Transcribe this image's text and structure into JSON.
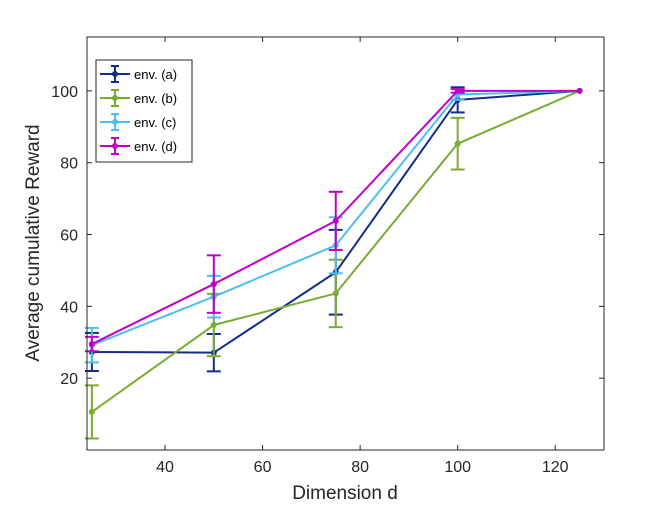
{
  "chart_data": {
    "type": "line",
    "title": "",
    "xlabel": "Dimension d",
    "ylabel": "Average cumulative Reward",
    "xlim": [
      24,
      130
    ],
    "ylim": [
      0,
      115
    ],
    "xticks": [
      40,
      60,
      80,
      100,
      120
    ],
    "yticks": [
      20,
      40,
      60,
      80,
      100
    ],
    "grid": false,
    "legend_position": "top-left",
    "series": [
      {
        "name": "env. (a)",
        "color": "#142C8C",
        "x": [
          25,
          50,
          75,
          100,
          125
        ],
        "y": [
          27.3,
          27.1,
          49.5,
          97.5,
          100
        ],
        "err": [
          5.3,
          5.2,
          11.8,
          3.5,
          0
        ]
      },
      {
        "name": "env. (b)",
        "color": "#77AC30",
        "x": [
          25,
          50,
          75,
          100,
          125
        ],
        "y": [
          10.6,
          34.8,
          43.6,
          85.3,
          100
        ],
        "err": [
          7.4,
          8.7,
          9.4,
          7.2,
          0
        ]
      },
      {
        "name": "env. (c)",
        "color": "#4DBEEE",
        "x": [
          25,
          50,
          75,
          100,
          125
        ],
        "y": [
          29.2,
          42.7,
          57.0,
          99.0,
          100
        ],
        "err": [
          4.8,
          5.8,
          7.8,
          1.5,
          0
        ]
      },
      {
        "name": "env. (d)",
        "color": "#C000C8",
        "x": [
          25,
          50,
          75,
          100,
          125
        ],
        "y": [
          29.5,
          46.2,
          63.8,
          100,
          100
        ],
        "err": [
          2.0,
          8.0,
          8.1,
          0.5,
          0
        ]
      }
    ]
  }
}
